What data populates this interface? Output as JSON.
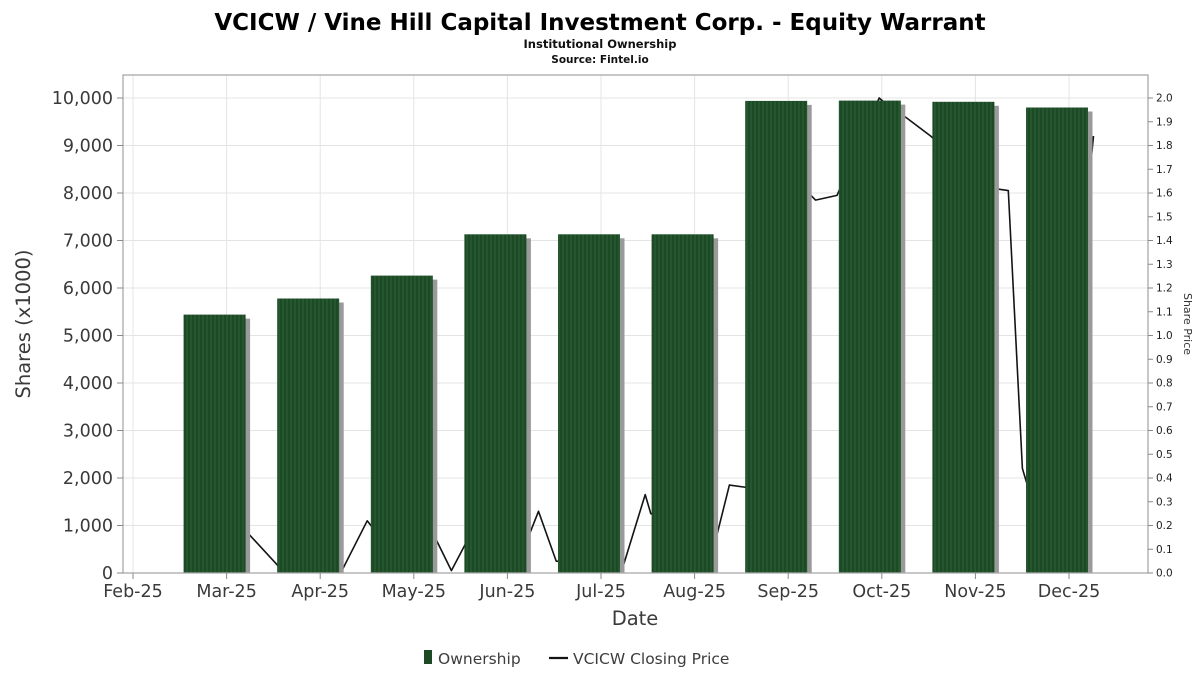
{
  "header": {
    "title": "VCICW / Vine Hill Capital Investment Corp. - Equity Warrant",
    "subtitle": "Institutional Ownership",
    "source": "Source: Fintel.io"
  },
  "colors": {
    "bar_fill": "#1b4a25",
    "bar_stripe": "#2f6339",
    "bar_shadow": "#9a9a9a",
    "price_line": "#141414",
    "grid": "#e4e4e4",
    "plot_border": "#a9a9a9",
    "tick": "#888888"
  },
  "chart_data": {
    "type": "bar+line",
    "categories": [
      "Feb-25",
      "Mar-25",
      "Apr-25",
      "May-25",
      "Jun-25",
      "Jul-25",
      "Aug-25",
      "Sep-25",
      "Oct-25",
      "Nov-25",
      "Dec-25"
    ],
    "series": [
      {
        "name": "Ownership",
        "type": "bar",
        "axis": "left",
        "unit": "shares x1000",
        "values": [
          null,
          5440,
          5780,
          6260,
          7130,
          7130,
          7130,
          9940,
          9945,
          9920,
          9800
        ]
      },
      {
        "name": "VCICW Closing Price",
        "type": "line",
        "axis": "right",
        "unit": "USD",
        "x_months_note": "x = fractional month index, 0 = Feb-25 tick; segments behind bars are hidden",
        "points": [
          [
            1.35,
            0.17
          ],
          [
            1.68,
            0.03
          ],
          [
            2.36,
            0.01
          ],
          [
            2.63,
            0.22
          ],
          [
            2.71,
            0.18
          ],
          [
            3.33,
            0.17
          ],
          [
            3.53,
            0.01
          ],
          [
            3.69,
            0.13
          ],
          [
            4.35,
            0.15
          ],
          [
            4.46,
            0.26
          ],
          [
            4.65,
            0.05
          ],
          [
            5.35,
            0.01
          ],
          [
            5.6,
            0.33
          ],
          [
            5.66,
            0.25
          ],
          [
            6.36,
            0.15
          ],
          [
            6.5,
            0.37
          ],
          [
            6.69,
            0.36
          ],
          [
            7.32,
            1.61
          ],
          [
            7.42,
            1.57
          ],
          [
            7.65,
            1.59
          ],
          [
            8.1,
            2.0
          ],
          [
            8.34,
            1.92
          ],
          [
            8.38,
            1.92
          ],
          [
            8.65,
            1.84
          ],
          [
            9.31,
            1.62
          ],
          [
            9.48,
            1.61
          ],
          [
            9.63,
            0.44
          ],
          [
            9.94,
            0.03
          ],
          [
            10.39,
            1.84
          ]
        ]
      }
    ],
    "left_axis": {
      "label": "Shares (x1000)",
      "min": 0,
      "max": 10000,
      "tick_step": 1000,
      "tick_labels": [
        "0",
        "1,000",
        "2,000",
        "3,000",
        "4,000",
        "5,000",
        "6,000",
        "7,000",
        "8,000",
        "9,000",
        "10,000"
      ]
    },
    "right_axis": {
      "label": "Share Price",
      "min": 0.0,
      "max": 2.0,
      "tick_step": 0.1,
      "tick_labels": [
        "0.0",
        "0.1",
        "0.2",
        "0.3",
        "0.4",
        "0.5",
        "0.6",
        "0.7",
        "0.8",
        "0.9",
        "1.0",
        "1.1",
        "1.2",
        "1.3",
        "1.4",
        "1.5",
        "1.6",
        "1.7",
        "1.8",
        "1.9",
        "2.0"
      ]
    },
    "x_axis": {
      "label": "Date"
    },
    "grid": true,
    "legend_position": "bottom"
  }
}
